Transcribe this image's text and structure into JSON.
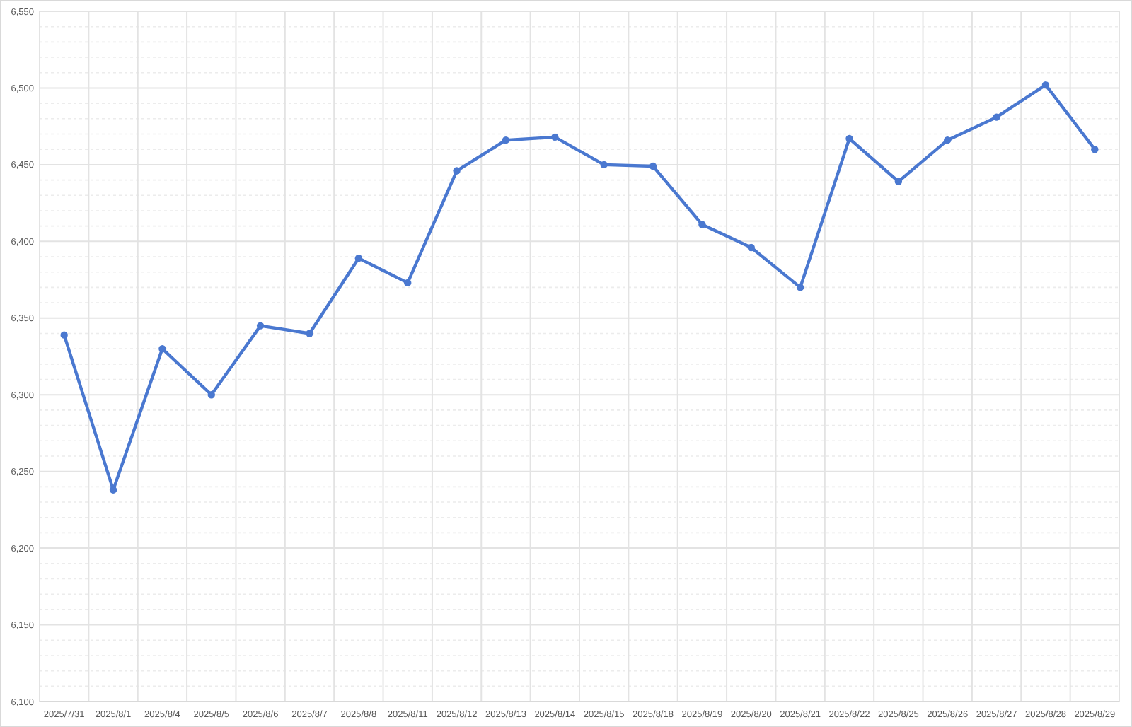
{
  "chart_data": {
    "type": "line",
    "categories": [
      "2025/7/31",
      "2025/8/1",
      "2025/8/4",
      "2025/8/5",
      "2025/8/6",
      "2025/8/7",
      "2025/8/8",
      "2025/8/11",
      "2025/8/12",
      "2025/8/13",
      "2025/8/14",
      "2025/8/15",
      "2025/8/18",
      "2025/8/19",
      "2025/8/20",
      "2025/8/21",
      "2025/8/22",
      "2025/8/25",
      "2025/8/26",
      "2025/8/27",
      "2025/8/28",
      "2025/8/29"
    ],
    "series": [
      {
        "color": "#4a78d0",
        "values": [
          6339,
          6238,
          6330,
          6300,
          6345,
          6340,
          6389,
          6373,
          6446,
          6466,
          6468,
          6450,
          6449,
          6411,
          6396,
          6370,
          6467,
          6439,
          6466,
          6481,
          6502,
          6460
        ]
      }
    ],
    "ylim": [
      6100,
      6550
    ],
    "yticks": [
      {
        "value": 6100,
        "label": "6,100"
      },
      {
        "value": 6150,
        "label": "6,150"
      },
      {
        "value": 6200,
        "label": "6,200"
      },
      {
        "value": 6250,
        "label": "6,250"
      },
      {
        "value": 6300,
        "label": "6,300"
      },
      {
        "value": 6350,
        "label": "6,350"
      },
      {
        "value": 6400,
        "label": "6,400"
      },
      {
        "value": 6450,
        "label": "6,450"
      },
      {
        "value": 6500,
        "label": "6,500"
      },
      {
        "value": 6550,
        "label": "6,550"
      }
    ],
    "grid": true,
    "marker": "circle",
    "line_style": "solid"
  }
}
